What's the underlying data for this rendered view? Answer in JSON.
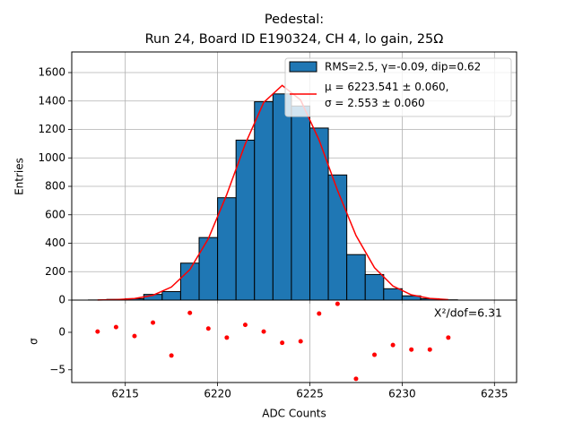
{
  "chart_data": [
    {
      "type": "histogram",
      "title": "Pedestal:",
      "subtitle": "Run 24, Board ID E190324, CH 4, lo gain, 25Ω",
      "ylabel": "Entries",
      "bins": [
        6213,
        6214,
        6215,
        6216,
        6217,
        6218,
        6219,
        6220,
        6221,
        6222,
        6223,
        6224,
        6225,
        6226,
        6227,
        6228,
        6229,
        6230,
        6231,
        6232,
        6233
      ],
      "series": [
        {
          "name": "RMS=2.5, γ=-0.09, dip=0.62",
          "color": "#1f77b4",
          "values": [
            1,
            5,
            10,
            40,
            60,
            260,
            440,
            720,
            1125,
            1395,
            1450,
            1365,
            1210,
            880,
            320,
            180,
            80,
            30,
            10,
            2
          ]
        }
      ],
      "fit": {
        "name": "μ = 6223.541 ± 0.060,\nσ = 2.553 ± 0.060",
        "color": "#ff0000",
        "x": [
          6213.5,
          6214.5,
          6215.5,
          6216.5,
          6217.5,
          6218.5,
          6219.5,
          6220.5,
          6221.5,
          6222.5,
          6223.5,
          6224.5,
          6225.5,
          6226.5,
          6227.5,
          6228.5,
          6229.5,
          6230.5,
          6231.5,
          6232.5
        ],
        "values": [
          1,
          3,
          11,
          34,
          92,
          215,
          432,
          743,
          1098,
          1390,
          1510,
          1407,
          1125,
          771,
          454,
          228,
          99,
          37,
          12,
          3
        ]
      },
      "xlim": [
        6212.1,
        6236.2
      ],
      "xticks": [
        6215,
        6220,
        6225,
        6230,
        6235
      ],
      "ylim": [
        0,
        1745
      ],
      "yticks": [
        0,
        200,
        400,
        600,
        800,
        1000,
        1200,
        1400,
        1600
      ],
      "grid": true,
      "legend": "upper right"
    },
    {
      "type": "scatter",
      "xlabel": "ADC Counts",
      "ylabel": "σ",
      "annotation": "X²/dof=6.31",
      "color": "#ff0000",
      "x": [
        6213.5,
        6214.5,
        6215.5,
        6216.5,
        6217.5,
        6218.5,
        6219.5,
        6220.5,
        6221.5,
        6222.5,
        6223.5,
        6224.5,
        6225.5,
        6226.5,
        6227.5,
        6228.5,
        6229.5,
        6230.5,
        6231.5,
        6232.5
      ],
      "values": [
        0.1,
        0.7,
        -0.5,
        1.3,
        -3.1,
        2.6,
        0.5,
        -0.7,
        1.0,
        0.1,
        -1.4,
        -1.2,
        2.5,
        3.8,
        -6.2,
        -3.0,
        -1.7,
        -2.3,
        -2.3,
        -0.7
      ],
      "xlim": [
        6212.1,
        6236.2
      ],
      "xticks": [
        6215,
        6220,
        6225,
        6230,
        6235
      ],
      "ylim": [
        -6.7,
        4.3
      ],
      "yticks": [
        {
          "value": -5,
          "label": "−5"
        },
        0
      ],
      "grid": true
    }
  ]
}
